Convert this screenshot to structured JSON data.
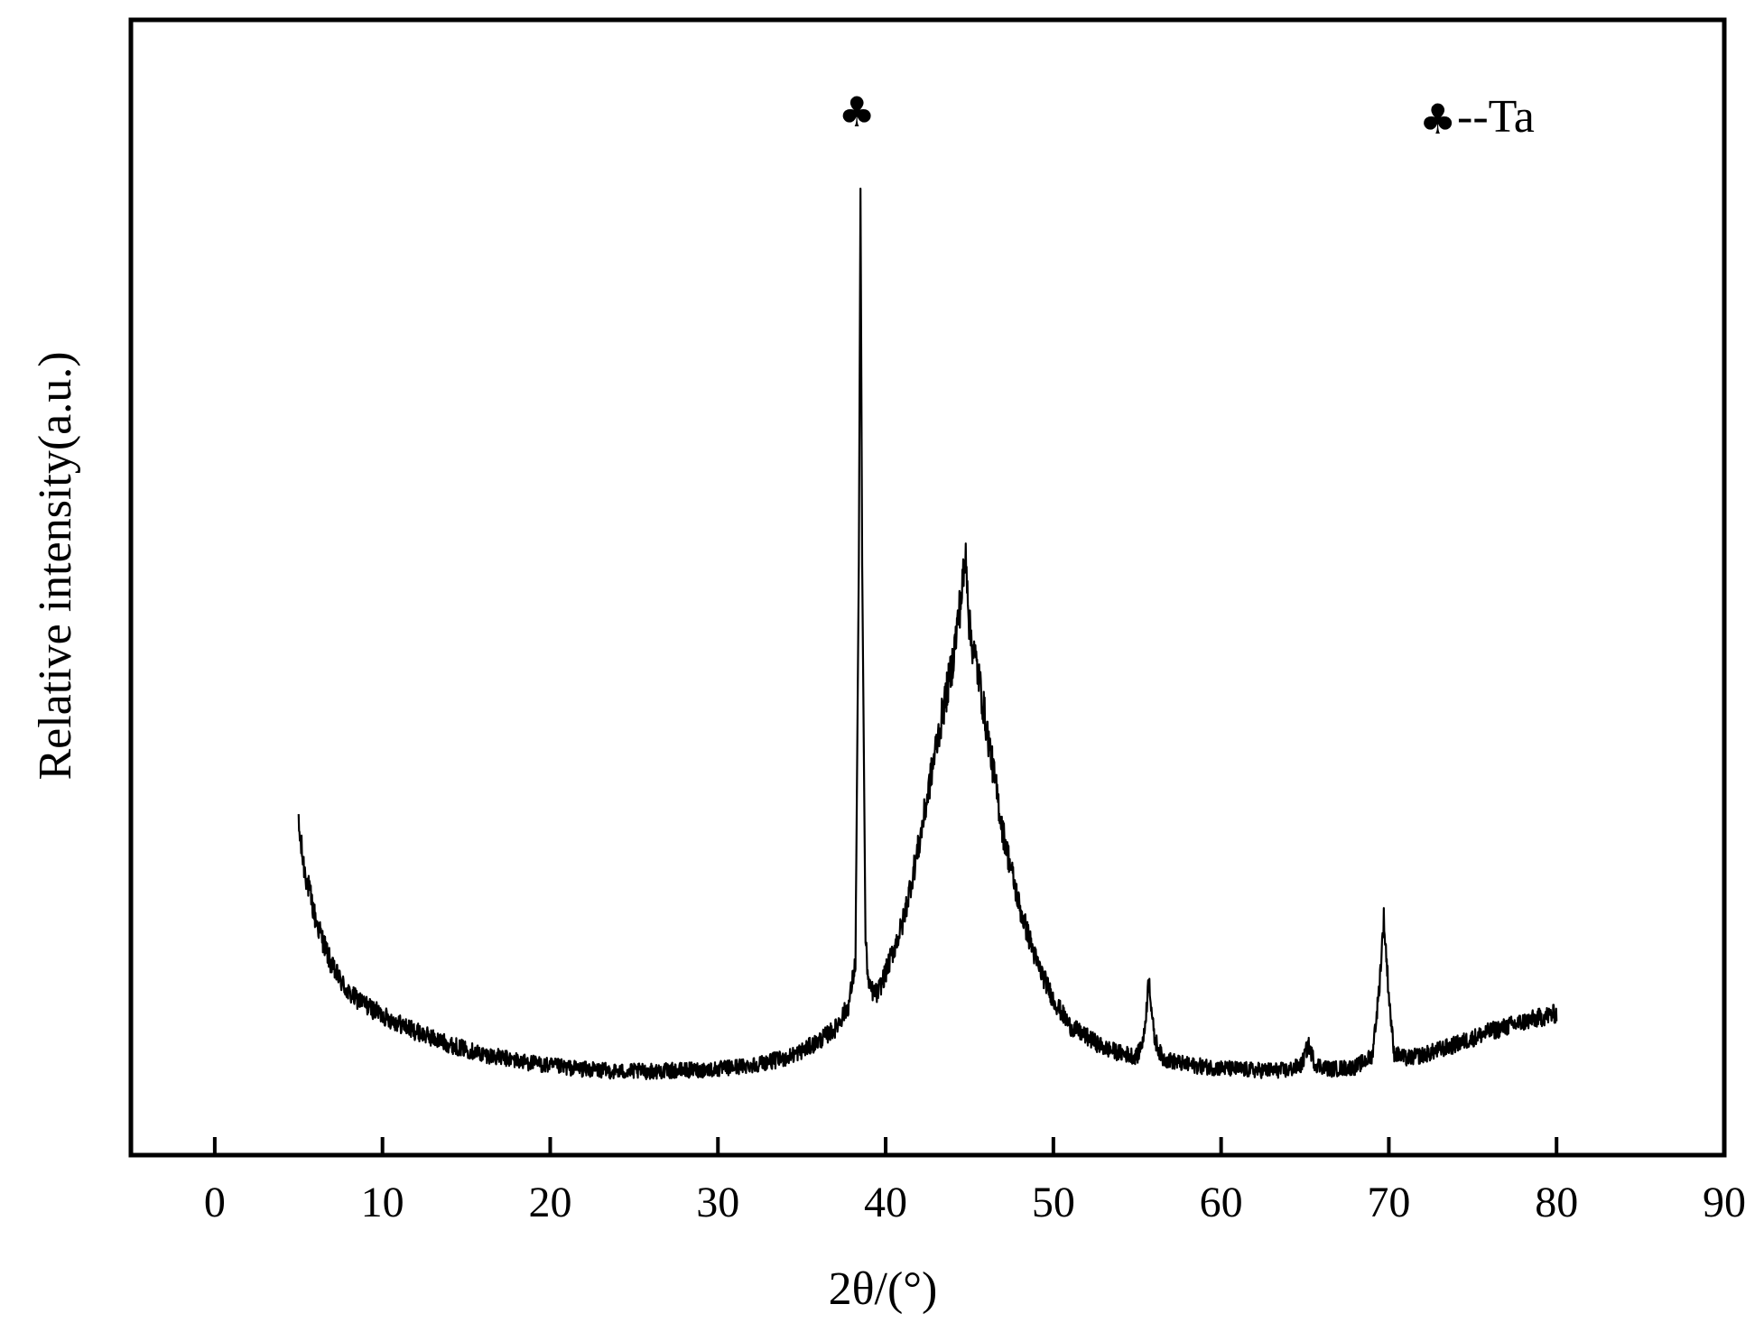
{
  "chart_data": {
    "type": "line",
    "title": "",
    "xlabel": "2θ/(°)",
    "ylabel": "Relative intensity(a.u.)",
    "xlim": [
      -5,
      90
    ],
    "ylim": [
      0,
      100
    ],
    "xticks": [
      0,
      10,
      20,
      30,
      40,
      50,
      60,
      70,
      80,
      90
    ],
    "xtick_labels": [
      "0",
      "10",
      "20",
      "30",
      "40",
      "50",
      "60",
      "70",
      "80",
      "90"
    ],
    "y_tick_labels_shown": false,
    "grid": false,
    "legend": {
      "placement": "top-right",
      "marker": "♣",
      "label": "--Ta"
    },
    "annotations": [
      {
        "x": 38.5,
        "symbol": "♣"
      }
    ],
    "series": [
      {
        "color": "#000000",
        "noisy": true,
        "points": [
          [
            5.0,
            30.5
          ],
          [
            5.3,
            27.0
          ],
          [
            6.0,
            22.0
          ],
          [
            7.0,
            17.5
          ],
          [
            8.0,
            15.0
          ],
          [
            10.0,
            13.0
          ],
          [
            12.0,
            11.5
          ],
          [
            14.0,
            10.3
          ],
          [
            16.0,
            9.4
          ],
          [
            18.0,
            8.8
          ],
          [
            20.0,
            8.3
          ],
          [
            22.0,
            8.0
          ],
          [
            24.0,
            7.8
          ],
          [
            26.0,
            7.8
          ],
          [
            28.0,
            7.9
          ],
          [
            30.0,
            8.0
          ],
          [
            32.0,
            8.4
          ],
          [
            34.0,
            9.0
          ],
          [
            35.0,
            9.7
          ],
          [
            36.0,
            10.6
          ],
          [
            37.0,
            11.8
          ],
          [
            37.8,
            14.0
          ],
          [
            38.2,
            18.0
          ],
          [
            38.4,
            55.0
          ],
          [
            38.5,
            90.0
          ],
          [
            38.6,
            55.0
          ],
          [
            38.8,
            20.0
          ],
          [
            39.0,
            15.5
          ],
          [
            39.5,
            15.0
          ],
          [
            40.0,
            17.0
          ],
          [
            41.0,
            21.5
          ],
          [
            42.0,
            29.0
          ],
          [
            43.0,
            38.0
          ],
          [
            44.0,
            46.0
          ],
          [
            44.5,
            52.0
          ],
          [
            44.8,
            56.0
          ],
          [
            45.0,
            49.0
          ],
          [
            45.5,
            45.0
          ],
          [
            46.0,
            40.0
          ],
          [
            47.0,
            30.0
          ],
          [
            48.0,
            23.0
          ],
          [
            49.0,
            18.0
          ],
          [
            50.0,
            14.5
          ],
          [
            51.0,
            12.0
          ],
          [
            52.0,
            11.0
          ],
          [
            53.0,
            10.0
          ],
          [
            54.0,
            9.5
          ],
          [
            55.0,
            9.2
          ],
          [
            55.4,
            11.0
          ],
          [
            55.7,
            16.5
          ],
          [
            56.0,
            11.0
          ],
          [
            56.5,
            9.0
          ],
          [
            58.0,
            8.4
          ],
          [
            60.0,
            8.1
          ],
          [
            62.0,
            7.9
          ],
          [
            64.0,
            7.9
          ],
          [
            64.8,
            8.4
          ],
          [
            65.2,
            10.3
          ],
          [
            65.6,
            8.5
          ],
          [
            66.5,
            8.0
          ],
          [
            68.0,
            8.2
          ],
          [
            69.0,
            9.2
          ],
          [
            69.4,
            15.0
          ],
          [
            69.7,
            22.0
          ],
          [
            70.0,
            15.0
          ],
          [
            70.3,
            9.5
          ],
          [
            71.0,
            9.0
          ],
          [
            72.0,
            9.3
          ],
          [
            74.0,
            10.3
          ],
          [
            76.0,
            11.5
          ],
          [
            78.0,
            12.4
          ],
          [
            80.0,
            13.2
          ]
        ]
      }
    ]
  }
}
